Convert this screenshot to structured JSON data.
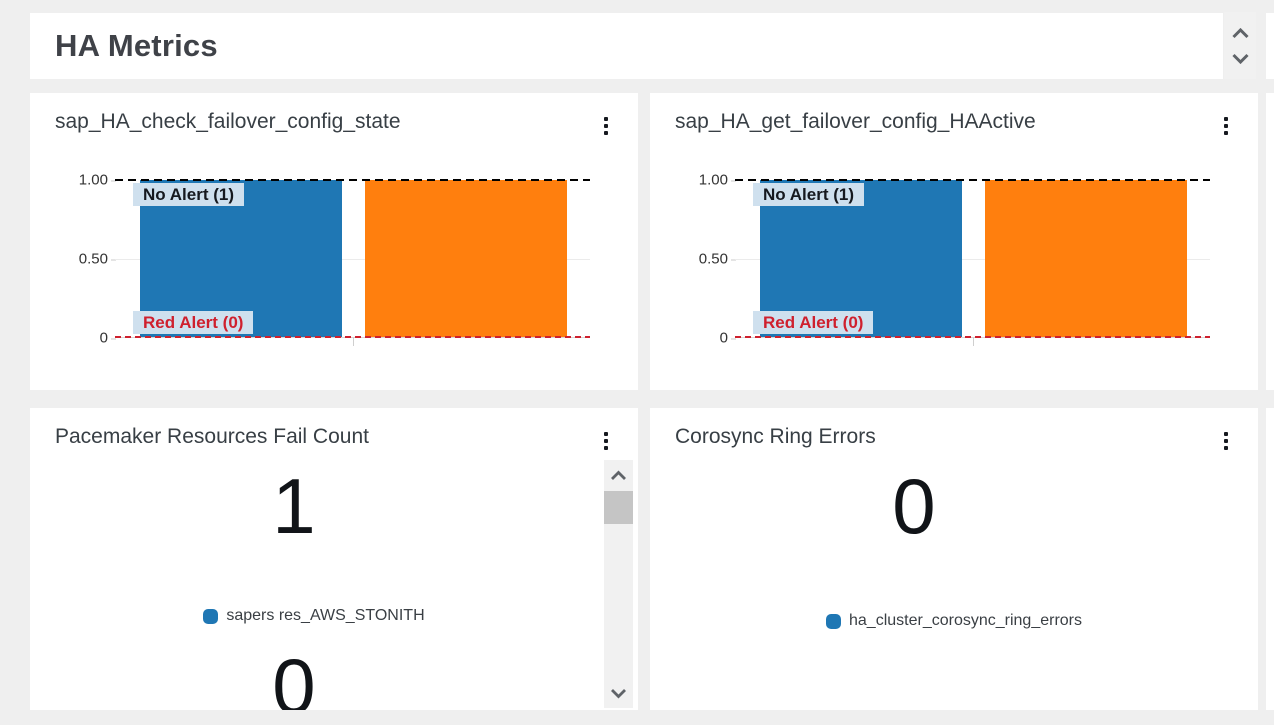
{
  "page": {
    "title": "HA Metrics"
  },
  "colors": {
    "accent_blue": "#1f77b4",
    "accent_orange": "#ff7f0e",
    "alert_red": "#cf202e",
    "annotation_bg": "#cfe0ee",
    "widget_bg": "#ffffff",
    "page_bg": "#efefef"
  },
  "icons": {
    "widget_menu": "vertical-ellipsis-icon",
    "scroll_up": "chevron-up-icon",
    "scroll_down": "chevron-down-icon"
  },
  "chart_data": [
    {
      "type": "bar",
      "title": "sap_HA_check_failover_config_state",
      "categories": [
        "",
        ""
      ],
      "values": [
        1,
        1
      ],
      "bar_colors": [
        "#1f77b4",
        "#ff7f0e"
      ],
      "ylim": [
        0,
        1
      ],
      "yticks": [
        {
          "label": "1.00",
          "value": 1
        },
        {
          "label": "0.50",
          "value": 0.5
        },
        {
          "label": "0",
          "value": 0
        }
      ],
      "annotations": [
        {
          "label": "No Alert (1)",
          "value": 1,
          "line_color": "#000000",
          "label_color": "#16191f",
          "style": "dashed",
          "dash": [
            8,
            5
          ]
        },
        {
          "label": "Red Alert (0)",
          "value": 0,
          "line_color": "#cf202e",
          "label_color": "#cf202e",
          "style": "dashed",
          "dash": [
            6,
            4
          ]
        }
      ],
      "grid": "horizontal",
      "legend_position": "none"
    },
    {
      "type": "bar",
      "title": "sap_HA_get_failover_config_HAActive",
      "categories": [
        "",
        ""
      ],
      "values": [
        1,
        1
      ],
      "bar_colors": [
        "#1f77b4",
        "#ff7f0e"
      ],
      "ylim": [
        0,
        1
      ],
      "yticks": [
        {
          "label": "1.00",
          "value": 1
        },
        {
          "label": "0.50",
          "value": 0.5
        },
        {
          "label": "0",
          "value": 0
        }
      ],
      "annotations": [
        {
          "label": "No Alert (1)",
          "value": 1,
          "line_color": "#000000",
          "label_color": "#16191f",
          "style": "dashed",
          "dash": [
            8,
            5
          ]
        },
        {
          "label": "Red Alert (0)",
          "value": 0,
          "line_color": "#cf202e",
          "label_color": "#cf202e",
          "style": "dashed",
          "dash": [
            6,
            4
          ]
        }
      ],
      "grid": "horizontal",
      "legend_position": "none"
    }
  ],
  "number_widgets": [
    {
      "title": "Pacemaker Resources Fail Count",
      "value": "1",
      "legend_label": "sapers res_AWS_STONITH",
      "legend_color": "#1f77b4",
      "secondary_value": "0"
    },
    {
      "title": "Corosync Ring Errors",
      "value": "0",
      "legend_label": "ha_cluster_corosync_ring_errors",
      "legend_color": "#1f77b4"
    }
  ]
}
